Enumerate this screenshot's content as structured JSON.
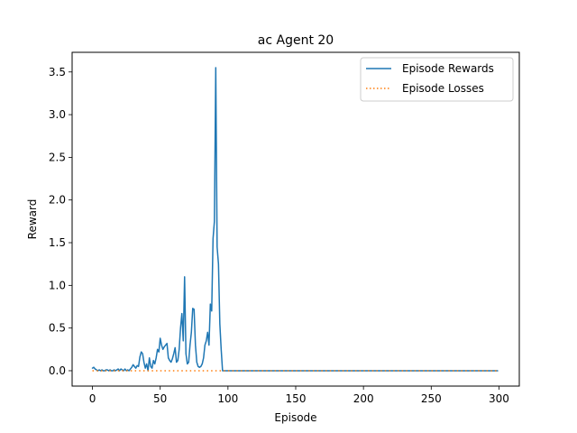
{
  "chart_data": {
    "type": "line",
    "title": "ac Agent 20",
    "xlabel": "Episode",
    "ylabel": "Reward",
    "xlim": [
      -15,
      315
    ],
    "ylim": [
      -0.18,
      3.73
    ],
    "xticks": [
      0,
      50,
      100,
      150,
      200,
      250,
      300
    ],
    "yticks": [
      0.0,
      0.5,
      1.0,
      1.5,
      2.0,
      2.5,
      3.0,
      3.5
    ],
    "grid": false,
    "legend_position": "top-right",
    "series": [
      {
        "name": "Episode Rewards",
        "color": "#1f77b4",
        "style": "solid",
        "x": [
          0,
          1,
          2,
          3,
          4,
          5,
          6,
          7,
          8,
          9,
          10,
          11,
          12,
          13,
          14,
          15,
          16,
          17,
          18,
          19,
          20,
          21,
          22,
          23,
          24,
          25,
          26,
          27,
          28,
          29,
          30,
          31,
          32,
          33,
          34,
          35,
          36,
          37,
          38,
          39,
          40,
          41,
          42,
          43,
          44,
          45,
          46,
          47,
          48,
          49,
          50,
          51,
          52,
          53,
          54,
          55,
          56,
          57,
          58,
          59,
          60,
          61,
          62,
          63,
          64,
          65,
          66,
          67,
          68,
          69,
          70,
          71,
          72,
          73,
          74,
          75,
          76,
          77,
          78,
          79,
          80,
          81,
          82,
          83,
          84,
          85,
          86,
          87,
          88,
          89,
          90,
          91,
          92,
          93,
          94,
          95,
          96,
          97,
          98,
          99,
          100,
          299
        ],
        "values": [
          0.03,
          0.04,
          0.02,
          0.01,
          0.0,
          0.01,
          0.0,
          0.01,
          0.0,
          0.0,
          0.01,
          0.01,
          0.0,
          0.01,
          0.0,
          0.0,
          0.01,
          0.0,
          0.01,
          0.02,
          0.0,
          0.02,
          0.01,
          0.0,
          0.02,
          0.0,
          0.01,
          0.0,
          0.02,
          0.04,
          0.07,
          0.05,
          0.03,
          0.06,
          0.05,
          0.16,
          0.22,
          0.2,
          0.1,
          0.03,
          0.08,
          0.0,
          0.15,
          0.05,
          0.03,
          0.12,
          0.08,
          0.15,
          0.25,
          0.22,
          0.38,
          0.3,
          0.25,
          0.28,
          0.3,
          0.32,
          0.15,
          0.12,
          0.1,
          0.14,
          0.2,
          0.27,
          0.1,
          0.12,
          0.25,
          0.5,
          0.67,
          0.35,
          1.1,
          0.2,
          0.08,
          0.1,
          0.3,
          0.45,
          0.73,
          0.72,
          0.3,
          0.1,
          0.05,
          0.04,
          0.05,
          0.08,
          0.15,
          0.3,
          0.35,
          0.45,
          0.3,
          0.78,
          0.7,
          1.55,
          1.75,
          3.55,
          1.45,
          1.25,
          0.55,
          0.25,
          0.0,
          0.0,
          0.0,
          0.0,
          0.0,
          0.0
        ],
        "x_offset_note": ""
      },
      {
        "name": "Episode Losses",
        "color": "#ff7f0e",
        "style": "dotted",
        "x": [
          0,
          299
        ],
        "values": [
          0.0,
          0.0
        ]
      }
    ]
  }
}
